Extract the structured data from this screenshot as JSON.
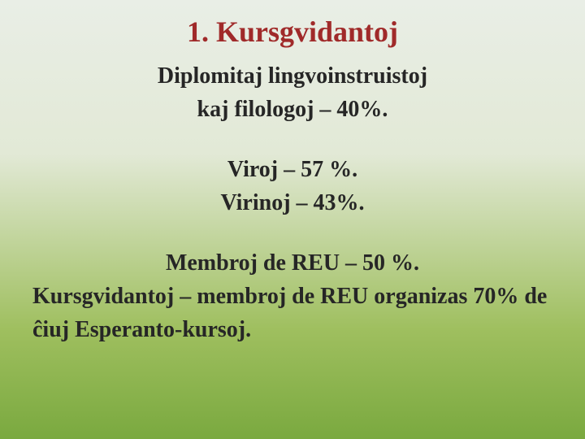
{
  "slide": {
    "title": "1. Kursgvidantoj",
    "line1": "Diplomitaj lingvoinstruistoj",
    "line2": "kaj filologoj – 40%.",
    "line3": "Viroj – 57 %.",
    "line4": "Virinoj – 43%.",
    "line5": "Membroj de REU – 50 %.",
    "line6": "Kursgvidantoj – membroj de REU organizas 70% de ĉiuj Esperanto-kursoj.",
    "colors": {
      "title": "#a02a2a",
      "text": "#262626",
      "bg_top": "#e9eee6",
      "bg_bottom": "#7aa93f"
    },
    "fontsize": {
      "title": 36,
      "body": 28
    }
  }
}
